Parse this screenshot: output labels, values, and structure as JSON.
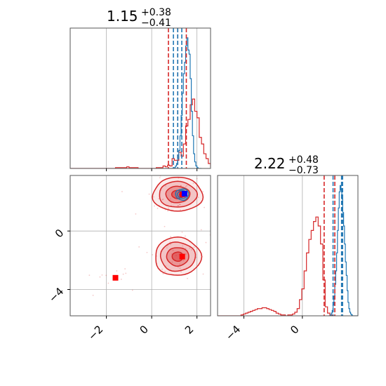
{
  "chart_data": {
    "type": "corner",
    "parameters": [
      {
        "title": {
          "value": "1.15",
          "upper": "+0.38",
          "lower": "−0.41"
        },
        "range": [
          -3.6,
          2.6
        ],
        "ticks": [
          -2,
          0,
          2
        ],
        "tick_labels": [
          "−2",
          "0",
          "2"
        ],
        "hist_red": {
          "edges_start": -3.6,
          "bin_width": 0.1,
          "counts": [
            0,
            0,
            0,
            0,
            0,
            0,
            0,
            0,
            0,
            0,
            0,
            0,
            0,
            0,
            0,
            0,
            0,
            0,
            0,
            0,
            1,
            1,
            1,
            1,
            1,
            2,
            1,
            1,
            1,
            1,
            0,
            0,
            0,
            0,
            0,
            0,
            0,
            0,
            1,
            1,
            1,
            3,
            2,
            4,
            3,
            12,
            10,
            10,
            20,
            15,
            30,
            52,
            60,
            78,
            85,
            70,
            62,
            38,
            30,
            18,
            12,
            6,
            2
          ]
        },
        "hist_blue": {
          "edges_start": 0.6,
          "bin_width": 0.05,
          "counts": [
            0,
            0,
            0,
            0,
            0,
            0,
            0,
            0,
            1,
            3,
            6,
            12,
            22,
            40,
            65,
            92,
            116,
            130,
            150,
            160,
            145,
            140,
            110,
            70,
            40,
            18,
            8,
            3,
            1,
            0,
            0,
            0
          ]
        },
        "lines_red": [
          0.74,
          1.15,
          1.53
        ],
        "lines_blue": [
          0.96,
          1.15,
          1.33
        ],
        "hist_ymax": 165
      },
      {
        "title": {
          "value": "2.22",
          "upper": "+0.48",
          "lower": "−0.73"
        },
        "range": [
          -5.8,
          3.8
        ],
        "ticks": [
          -4,
          0
        ],
        "tick_labels": [
          "−4",
          "0"
        ],
        "hist_red": {
          "edges_start": -5.8,
          "bin_width": 0.16,
          "counts": [
            0,
            0,
            0,
            0,
            0,
            0,
            0,
            0,
            0,
            0,
            1,
            2,
            3,
            4,
            5,
            6,
            7,
            8,
            8,
            9,
            9,
            8,
            7,
            6,
            5,
            3,
            2,
            1,
            1,
            0,
            1,
            1,
            2,
            4,
            8,
            18,
            30,
            50,
            70,
            85,
            95,
            105,
            110,
            100,
            80,
            40,
            10,
            3,
            1,
            0
          ]
        },
        "hist_blue": {
          "edges_start": 1.8,
          "bin_width": 0.06,
          "counts": [
            0,
            0,
            1,
            3,
            6,
            12,
            22,
            35,
            50,
            70,
            95,
            120,
            138,
            145,
            140,
            130,
            115,
            100,
            80,
            60,
            45,
            28,
            15,
            8,
            4,
            2,
            1,
            0,
            0,
            0,
            0,
            0,
            0,
            0
          ]
        },
        "lines_red": [
          1.49,
          2.22,
          2.7
        ],
        "lines_blue": [
          2.1,
          2.68,
          2.75
        ],
        "hist_ymax": 150
      }
    ],
    "joint": {
      "x_range": [
        -3.6,
        2.6
      ],
      "y_range": [
        -5.8,
        3.8
      ],
      "red_modes": [
        {
          "x": 1.15,
          "y": 2.5,
          "sx": 0.38,
          "sy": 0.4
        },
        {
          "x": 1.15,
          "y": -1.75,
          "sx": 0.35,
          "sy": 0.45
        }
      ],
      "blue_mode": {
        "x": 1.35,
        "y": 2.5,
        "sx": 0.12,
        "sy": 0.16
      },
      "markers_red": [
        [
          1.35,
          2.5
        ],
        [
          1.35,
          -1.75
        ],
        [
          -1.6,
          -3.2
        ]
      ],
      "marker_blue": [
        1.45,
        2.55
      ]
    },
    "colors": {
      "red": "#d62728",
      "blue": "#1f77b4",
      "marker_blue": "#0000ff",
      "marker_red": "#ff0000"
    }
  }
}
